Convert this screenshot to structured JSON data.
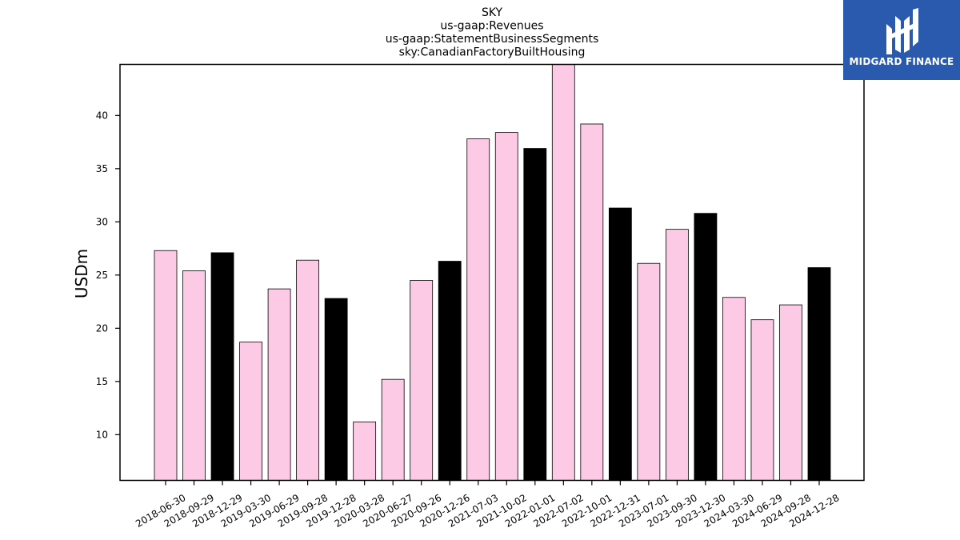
{
  "chart_data": {
    "type": "bar",
    "title_lines": [
      "SKY",
      "us-gaap:Revenues",
      "us-gaap:StatementBusinessSegments",
      "sky:CanadianFactoryBuiltHousing"
    ],
    "xlabel": "",
    "ylabel": "USDm",
    "ylim": [
      5.7,
      44.8
    ],
    "yticks": [
      10,
      15,
      20,
      25,
      30,
      35,
      40
    ],
    "grid": false,
    "categories": [
      "2018-06-30",
      "2018-09-29",
      "2018-12-29",
      "2019-03-30",
      "2019-06-29",
      "2019-09-28",
      "2019-12-28",
      "2020-03-28",
      "2020-06-27",
      "2020-09-26",
      "2020-12-26",
      "2021-07-03",
      "2021-10-02",
      "2022-01-01",
      "2022-07-02",
      "2022-10-01",
      "2022-12-31",
      "2023-07-01",
      "2023-09-30",
      "2023-12-30",
      "2024-03-30",
      "2024-06-29",
      "2024-09-28",
      "2024-12-28"
    ],
    "values": [
      27.3,
      25.4,
      27.1,
      18.7,
      23.7,
      26.4,
      22.8,
      11.2,
      15.2,
      24.5,
      26.3,
      37.8,
      38.4,
      36.9,
      45.0,
      39.2,
      31.3,
      26.1,
      29.3,
      30.8,
      22.9,
      20.8,
      22.2,
      25.7
    ],
    "highlight": [
      false,
      false,
      true,
      false,
      false,
      false,
      true,
      false,
      false,
      false,
      true,
      false,
      false,
      true,
      false,
      false,
      true,
      false,
      false,
      true,
      false,
      false,
      false,
      true
    ],
    "colors": {
      "bar": "#fccae4",
      "highlight_bar": "#000000",
      "edge": "#000000"
    }
  },
  "logo": {
    "text": "MIDGARD FINANCE",
    "background": "#2a5aad",
    "icon": "midgard-finance-logo-mark"
  }
}
